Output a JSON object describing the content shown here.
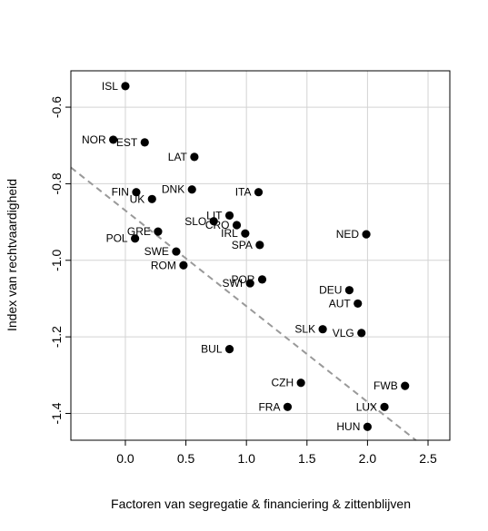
{
  "chart_data": {
    "type": "scatter",
    "title": "",
    "xlabel": "Factoren van segregatie & financiering & zittenblijven",
    "ylabel": "Index van rechtvaardigheid",
    "xlim": [
      -0.45,
      2.68
    ],
    "ylim": [
      -1.47,
      -0.505
    ],
    "xticks": [
      0.0,
      0.5,
      1.0,
      1.5,
      2.0,
      2.5
    ],
    "xtick_labels": [
      "0.0",
      "0.5",
      "1.0",
      "1.5",
      "2.0",
      "2.5"
    ],
    "yticks": [
      -0.6,
      -0.8,
      -1.0,
      -1.2,
      -1.4
    ],
    "ytick_labels": [
      "-0.6",
      "-0.8",
      "-1.0",
      "-1.2",
      "-1.4"
    ],
    "grid": true,
    "trendline": {
      "style": "dashed",
      "color": "#999999",
      "intercept": -0.87,
      "slope": -0.25
    },
    "colors": {
      "points": "#000000",
      "grid": "#d3d3d3",
      "trendline": "#999999"
    },
    "points": [
      {
        "label": "ISL",
        "x": 0.0,
        "y": -0.545,
        "anchor": "left"
      },
      {
        "label": "NOR",
        "x": -0.1,
        "y": -0.685,
        "anchor": "left"
      },
      {
        "label": "EST",
        "x": 0.16,
        "y": -0.692,
        "anchor": "left"
      },
      {
        "label": "LAT",
        "x": 0.57,
        "y": -0.73,
        "anchor": "left"
      },
      {
        "label": "FIN",
        "x": 0.09,
        "y": -0.822,
        "anchor": "left"
      },
      {
        "label": "UK",
        "x": 0.22,
        "y": -0.84,
        "anchor": "left"
      },
      {
        "label": "DNK",
        "x": 0.55,
        "y": -0.815,
        "anchor": "left"
      },
      {
        "label": "ITA",
        "x": 1.1,
        "y": -0.822,
        "anchor": "left"
      },
      {
        "label": "LIT",
        "x": 0.86,
        "y": -0.883,
        "anchor": "left"
      },
      {
        "label": "SLO",
        "x": 0.73,
        "y": -0.898,
        "anchor": "left"
      },
      {
        "label": "CRO",
        "x": 0.92,
        "y": -0.908,
        "anchor": "left"
      },
      {
        "label": "IRL",
        "x": 0.99,
        "y": -0.93,
        "anchor": "left"
      },
      {
        "label": "SPA",
        "x": 1.11,
        "y": -0.96,
        "anchor": "left"
      },
      {
        "label": "GRE",
        "x": 0.27,
        "y": -0.925,
        "anchor": "left"
      },
      {
        "label": "POL",
        "x": 0.08,
        "y": -0.943,
        "anchor": "left"
      },
      {
        "label": "SWE",
        "x": 0.42,
        "y": -0.977,
        "anchor": "left"
      },
      {
        "label": "ROM",
        "x": 0.48,
        "y": -1.013,
        "anchor": "left"
      },
      {
        "label": "NED",
        "x": 1.99,
        "y": -0.932,
        "anchor": "left"
      },
      {
        "label": "POR",
        "x": 1.13,
        "y": -1.05,
        "anchor": "left"
      },
      {
        "label": "SWI",
        "x": 1.03,
        "y": -1.06,
        "anchor": "left"
      },
      {
        "label": "DEU",
        "x": 1.85,
        "y": -1.078,
        "anchor": "left"
      },
      {
        "label": "AUT",
        "x": 1.92,
        "y": -1.113,
        "anchor": "left"
      },
      {
        "label": "SLK",
        "x": 1.63,
        "y": -1.18,
        "anchor": "left"
      },
      {
        "label": "VLG",
        "x": 1.95,
        "y": -1.19,
        "anchor": "left"
      },
      {
        "label": "BUL",
        "x": 0.86,
        "y": -1.232,
        "anchor": "left"
      },
      {
        "label": "CZH",
        "x": 1.45,
        "y": -1.32,
        "anchor": "left"
      },
      {
        "label": "FWB",
        "x": 2.31,
        "y": -1.328,
        "anchor": "left"
      },
      {
        "label": "FRA",
        "x": 1.34,
        "y": -1.383,
        "anchor": "left"
      },
      {
        "label": "LUX",
        "x": 2.14,
        "y": -1.383,
        "anchor": "left"
      },
      {
        "label": "HUN",
        "x": 2.0,
        "y": -1.435,
        "anchor": "left"
      }
    ]
  }
}
